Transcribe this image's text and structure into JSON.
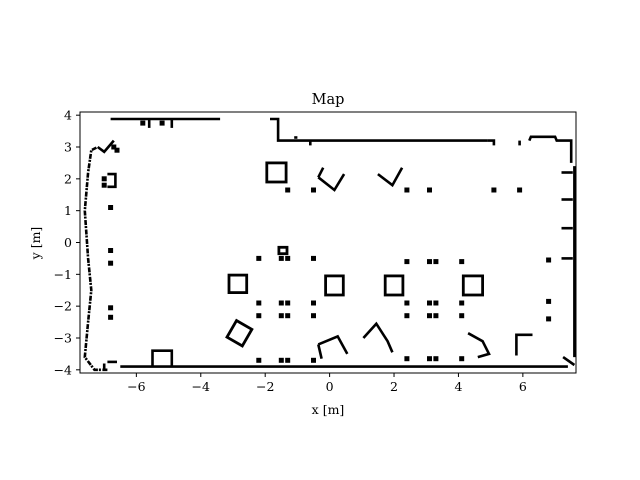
{
  "chart_data": {
    "type": "heatmap",
    "title": "Map",
    "xlabel": "x [m]",
    "ylabel": "y [m]",
    "xlim": [
      -7.75,
      7.65
    ],
    "ylim": [
      -4.1,
      4.1
    ],
    "xticks": [
      -6,
      -4,
      -2,
      0,
      2,
      4,
      6
    ],
    "yticks": [
      4,
      3,
      2,
      1,
      0,
      -1,
      -2,
      -3,
      -4
    ],
    "xtick_labels": [
      "−6",
      "−4",
      "−2",
      "0",
      "2",
      "4",
      "6"
    ],
    "ytick_labels": [
      "4",
      "3",
      "2",
      "1",
      "0",
      "−1",
      "−2",
      "−3",
      "−4"
    ],
    "grid": false,
    "occupied_color": "#000000",
    "free_color": "#ffffff",
    "walls": [
      [
        [
          -6.9,
          -4.0
        ],
        [
          -7.3,
          -4.0
        ],
        [
          -7.6,
          -3.6
        ],
        [
          -7.5,
          -2.5
        ],
        [
          -7.4,
          -1.5
        ],
        [
          -7.5,
          -0.5
        ],
        [
          -7.6,
          1.0
        ],
        [
          -7.5,
          2.2
        ],
        [
          -7.4,
          2.9
        ],
        [
          -7.2,
          3.0
        ]
      ],
      [
        [
          -7.2,
          3.0
        ],
        [
          -7.0,
          2.85
        ],
        [
          -6.7,
          3.2
        ]
      ],
      [
        [
          -6.8,
          3.88
        ],
        [
          -3.4,
          3.88
        ]
      ],
      [
        [
          -5.6,
          3.88
        ],
        [
          -5.6,
          3.6
        ]
      ],
      [
        [
          -4.9,
          3.88
        ],
        [
          -4.9,
          3.6
        ]
      ],
      [
        [
          -1.85,
          3.88
        ],
        [
          -1.6,
          3.88
        ],
        [
          -1.6,
          3.2
        ],
        [
          4.9,
          3.2
        ]
      ],
      [
        [
          -0.6,
          3.2
        ],
        [
          -0.6,
          3.05
        ]
      ],
      [
        [
          4.9,
          3.2
        ],
        [
          5.1,
          3.2
        ],
        [
          5.1,
          3.05
        ]
      ],
      [
        [
          5.9,
          3.2
        ],
        [
          5.9,
          3.05
        ]
      ],
      [
        [
          6.2,
          3.2
        ],
        [
          6.25,
          3.32
        ],
        [
          7.0,
          3.32
        ],
        [
          7.05,
          3.2
        ],
        [
          7.5,
          3.2
        ],
        [
          7.5,
          2.5
        ]
      ],
      [
        [
          7.6,
          2.4
        ],
        [
          7.6,
          -3.6
        ]
      ],
      [
        [
          7.2,
          2.2
        ],
        [
          7.55,
          2.2
        ]
      ],
      [
        [
          7.2,
          1.35
        ],
        [
          7.55,
          1.35
        ]
      ],
      [
        [
          7.2,
          0.45
        ],
        [
          7.55,
          0.45
        ]
      ],
      [
        [
          7.2,
          -0.5
        ],
        [
          7.55,
          -0.5
        ]
      ],
      [
        [
          7.25,
          -3.6
        ],
        [
          7.6,
          -3.85
        ]
      ],
      [
        [
          -6.5,
          -3.9
        ],
        [
          7.4,
          -3.9
        ]
      ],
      [
        [
          -5.5,
          -3.9
        ],
        [
          -5.5,
          -3.4
        ],
        [
          -4.9,
          -3.4
        ],
        [
          -4.9,
          -3.9
        ]
      ],
      [
        [
          -6.9,
          -3.75
        ],
        [
          -6.6,
          -3.75
        ]
      ],
      [
        [
          -7.0,
          -3.8
        ],
        [
          -7.0,
          -4.0
        ]
      ],
      [
        [
          5.8,
          -3.55
        ],
        [
          5.8,
          -2.9
        ],
        [
          6.3,
          -2.9
        ]
      ],
      [
        [
          -6.9,
          2.15
        ],
        [
          -6.65,
          2.15
        ],
        [
          -6.65,
          1.75
        ],
        [
          -6.9,
          1.75
        ]
      ]
    ],
    "boxes": [
      {
        "x": -2.85,
        "y": -1.3,
        "w": 0.55,
        "h": 0.55,
        "rot": 0
      },
      {
        "x": 0.15,
        "y": -1.35,
        "w": 0.55,
        "h": 0.6,
        "rot": 0
      },
      {
        "x": 2.0,
        "y": -1.35,
        "w": 0.55,
        "h": 0.6,
        "rot": 0
      },
      {
        "x": 4.45,
        "y": -1.35,
        "w": 0.6,
        "h": 0.6,
        "rot": 0
      },
      {
        "x": -1.65,
        "y": 2.2,
        "w": 0.6,
        "h": 0.6,
        "rot": 0
      },
      {
        "x": -2.8,
        "y": -2.85,
        "w": 0.55,
        "h": 0.6,
        "rot": 30
      },
      {
        "x": -1.45,
        "y": -0.25,
        "w": 0.25,
        "h": 0.2,
        "rot": 0
      }
    ],
    "strokes": [
      [
        [
          -0.35,
          2.05
        ],
        [
          0.15,
          1.65
        ],
        [
          0.45,
          2.15
        ]
      ],
      [
        [
          -0.2,
          2.35
        ],
        [
          -0.35,
          2.05
        ]
      ],
      [
        [
          1.5,
          2.15
        ],
        [
          1.95,
          1.8
        ],
        [
          2.25,
          2.35
        ]
      ],
      [
        [
          -0.35,
          -3.2
        ],
        [
          0.25,
          -2.95
        ],
        [
          0.55,
          -3.5
        ]
      ],
      [
        [
          -0.35,
          -3.2
        ],
        [
          -0.25,
          -3.65
        ]
      ],
      [
        [
          1.05,
          -3.0
        ],
        [
          1.45,
          -2.55
        ],
        [
          1.8,
          -3.1
        ],
        [
          1.95,
          -3.45
        ]
      ],
      [
        [
          4.3,
          -2.85
        ],
        [
          4.75,
          -3.1
        ],
        [
          4.95,
          -3.5
        ],
        [
          4.6,
          -3.6
        ]
      ],
      [
        [
          -1.1,
          3.3
        ],
        [
          -1.0,
          3.3
        ]
      ]
    ],
    "dots": [
      [
        -7.0,
        2.0
      ],
      [
        -7.0,
        1.8
      ],
      [
        -6.8,
        1.1
      ],
      [
        -6.8,
        -0.25
      ],
      [
        -6.8,
        -0.65
      ],
      [
        -6.8,
        -2.05
      ],
      [
        -6.8,
        -2.35
      ],
      [
        -2.2,
        -0.5
      ],
      [
        -1.5,
        -0.5
      ],
      [
        -1.3,
        -0.5
      ],
      [
        -0.5,
        -0.5
      ],
      [
        -2.2,
        -1.9
      ],
      [
        -1.5,
        -1.9
      ],
      [
        -1.3,
        -1.9
      ],
      [
        -0.5,
        -1.9
      ],
      [
        -2.2,
        -2.3
      ],
      [
        -1.5,
        -2.3
      ],
      [
        -1.3,
        -2.3
      ],
      [
        -0.5,
        -2.3
      ],
      [
        2.4,
        -0.6
      ],
      [
        3.1,
        -0.6
      ],
      [
        3.3,
        -0.6
      ],
      [
        4.1,
        -0.6
      ],
      [
        2.4,
        -1.9
      ],
      [
        3.1,
        -1.9
      ],
      [
        3.3,
        -1.9
      ],
      [
        4.1,
        -1.9
      ],
      [
        2.4,
        -2.3
      ],
      [
        3.1,
        -2.3
      ],
      [
        3.3,
        -2.3
      ],
      [
        4.1,
        -2.3
      ],
      [
        -1.3,
        1.65
      ],
      [
        -0.5,
        1.65
      ],
      [
        2.4,
        1.65
      ],
      [
        3.1,
        1.65
      ],
      [
        5.1,
        1.65
      ],
      [
        5.9,
        1.65
      ],
      [
        6.8,
        -0.55
      ],
      [
        6.8,
        -1.85
      ],
      [
        6.8,
        -2.4
      ],
      [
        -2.2,
        -3.7
      ],
      [
        -1.5,
        -3.7
      ],
      [
        -1.3,
        -3.7
      ],
      [
        -0.5,
        -3.7
      ],
      [
        2.4,
        -3.65
      ],
      [
        3.1,
        -3.65
      ],
      [
        3.3,
        -3.65
      ],
      [
        4.1,
        -3.65
      ],
      [
        -6.6,
        2.9
      ],
      [
        -6.7,
        3.0
      ],
      [
        -5.8,
        3.75
      ],
      [
        -5.2,
        3.75
      ]
    ]
  }
}
